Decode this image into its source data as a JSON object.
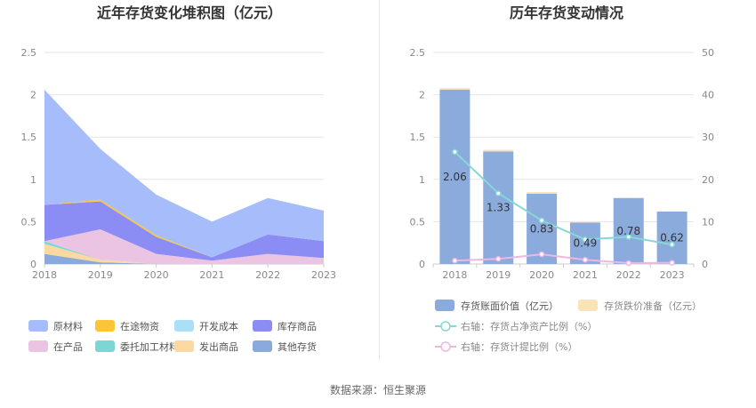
{
  "source_label": "数据来源：恒生聚源",
  "chart_data": [
    {
      "type": "area",
      "title": "近年存货变化堆积图（亿元）",
      "x": [
        "2018",
        "2019",
        "2020",
        "2021",
        "2022",
        "2023"
      ],
      "ylim": [
        0,
        2.5
      ],
      "yticks": [
        "0",
        "0.5",
        "1",
        "1.5",
        "2",
        "2.5"
      ],
      "stacked": true,
      "series": [
        {
          "name": "其他存货",
          "color": "#8aa9dc",
          "values": [
            0.12,
            0.02,
            0.0,
            0.0,
            0.0,
            0.0
          ]
        },
        {
          "name": "发出商品",
          "color": "#fcd9a0",
          "values": [
            0.12,
            0.03,
            0.0,
            0.0,
            0.0,
            0.0
          ]
        },
        {
          "name": "委托加工材料",
          "color": "#7dd6d6",
          "values": [
            0.03,
            0.0,
            0.0,
            0.0,
            0.0,
            0.0
          ]
        },
        {
          "name": "在产品",
          "color": "#ebc4e3",
          "values": [
            0.0,
            0.36,
            0.12,
            0.04,
            0.12,
            0.07
          ]
        },
        {
          "name": "库存商品",
          "color": "#8b8df5",
          "values": [
            0.43,
            0.33,
            0.2,
            0.04,
            0.23,
            0.2
          ]
        },
        {
          "name": "开发成本",
          "color": "#a9e0f8",
          "values": [
            0.0,
            0.0,
            0.0,
            0.0,
            0.0,
            0.0
          ]
        },
        {
          "name": "在途物资",
          "color": "#fbc53a",
          "values": [
            0.0,
            0.02,
            0.02,
            0.0,
            0.0,
            0.0
          ]
        },
        {
          "name": "原材料",
          "color": "#a7bdfb",
          "values": [
            1.36,
            0.6,
            0.48,
            0.42,
            0.43,
            0.36
          ]
        }
      ],
      "legend": [
        {
          "name": "原材料",
          "color": "#a7bdfb"
        },
        {
          "name": "在途物资",
          "color": "#fbc53a"
        },
        {
          "name": "开发成本",
          "color": "#a9e0f8"
        },
        {
          "name": "库存商品",
          "color": "#8b8df5"
        },
        {
          "name": "在产品",
          "color": "#ebc4e3"
        },
        {
          "name": "委托加工材料",
          "color": "#7dd6d6"
        },
        {
          "name": "发出商品",
          "color": "#fcd9a0"
        },
        {
          "name": "其他存货",
          "color": "#8aa9dc"
        }
      ],
      "legend_position": "bottom"
    },
    {
      "type": "bar",
      "title": "历年存货变动情况",
      "categories": [
        "2018",
        "2019",
        "2020",
        "2021",
        "2022",
        "2023"
      ],
      "ylim_left": [
        0,
        2.5
      ],
      "yticks_left": [
        "0",
        "0.5",
        "1",
        "1.5",
        "2",
        "2.5"
      ],
      "ylim_right": [
        0,
        50
      ],
      "yticks_right": [
        "0",
        "10",
        "20",
        "30",
        "40",
        "50"
      ],
      "series": [
        {
          "name": "存货账面价值（亿元）",
          "kind": "bar",
          "axis": "left",
          "color": "#8aabdc",
          "values": [
            2.06,
            1.33,
            0.83,
            0.49,
            0.78,
            0.62
          ],
          "labels": [
            "2.06",
            "1.33",
            "0.83",
            "0.49",
            "0.78",
            "0.62"
          ]
        },
        {
          "name": "存货跌价准备（亿元）",
          "kind": "bar",
          "axis": "left",
          "color": "#fbe3b8",
          "values": [
            0.02,
            0.02,
            0.02,
            0.01,
            0.0,
            0.0
          ]
        },
        {
          "name": "右轴：存货占净资产比例（%）",
          "kind": "line",
          "axis": "right",
          "color": "#86d8d8",
          "values": [
            26.5,
            16.7,
            10.3,
            5.8,
            6.4,
            4.6
          ]
        },
        {
          "name": "右轴：存货计提比例（%）",
          "kind": "line",
          "axis": "right",
          "color": "#f0b6e2",
          "values": [
            0.8,
            1.2,
            2.3,
            1.0,
            0.2,
            0.3
          ]
        }
      ],
      "legend_position": "bottom"
    }
  ]
}
